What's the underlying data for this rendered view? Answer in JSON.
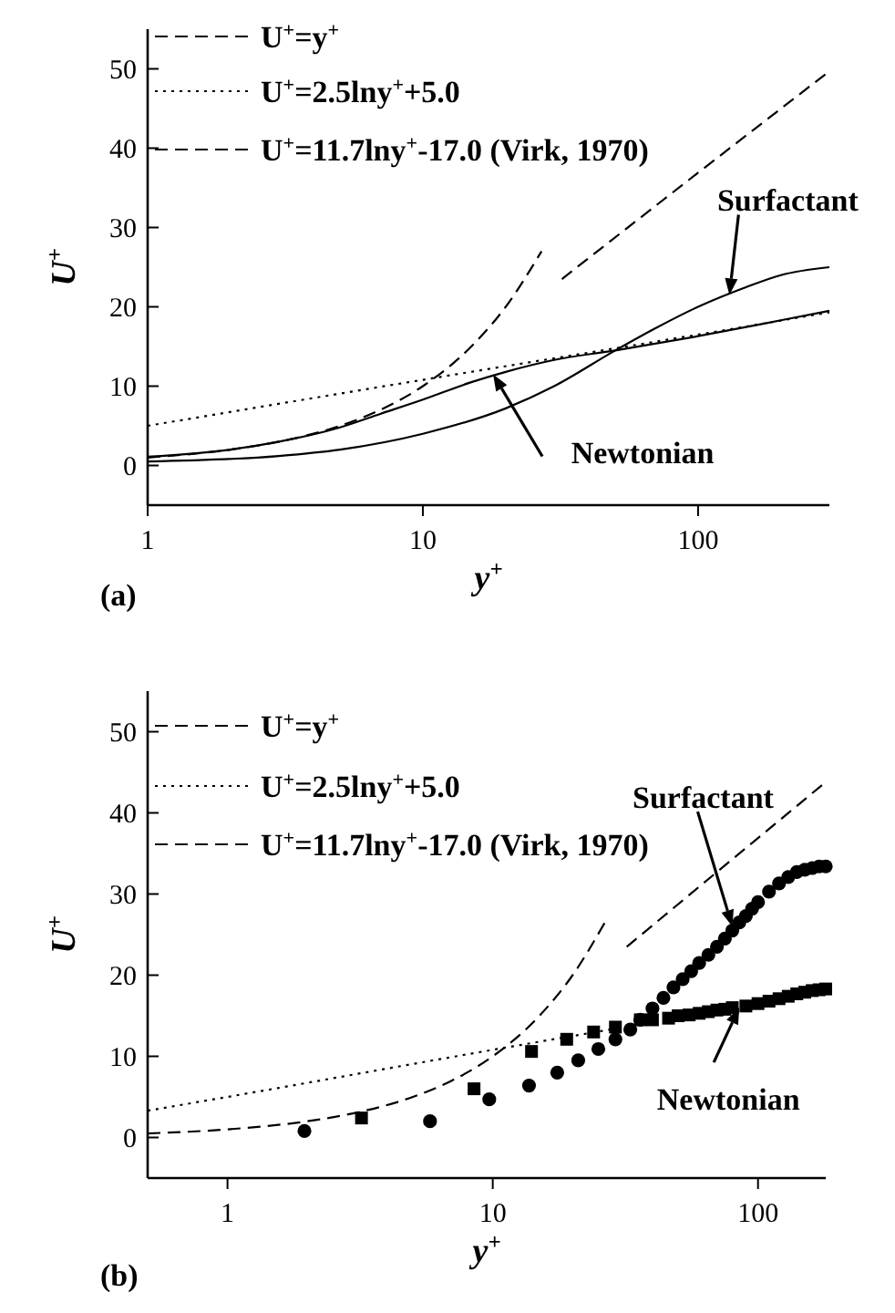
{
  "chart_data": [
    {
      "type": "line",
      "title": "(a)",
      "xlabel": "y$^{+}$",
      "ylabel": "U$^{+}$",
      "log": "x",
      "xlim": [
        1,
        300
      ],
      "xticks": [
        1,
        10,
        100
      ],
      "ylim": [
        -5,
        55
      ],
      "yticks": [
        0,
        10,
        20,
        30,
        40,
        50
      ],
      "grid": false,
      "legend": "top left",
      "series": [
        {
          "name": "U$^{+}$=y$^{+}$",
          "color": "#000000",
          "line_style": "dashed",
          "x": [
            1,
            2,
            3,
            5,
            7,
            10,
            15,
            20,
            27
          ],
          "values": [
            1,
            2,
            3,
            5,
            7,
            10,
            15,
            20,
            27
          ]
        },
        {
          "name": "U$^{+}$=2.5lny$^{+}$+5.0",
          "color": "#000000",
          "line_style": "dotted",
          "x": [
            1,
            10,
            100,
            300
          ],
          "values": [
            5,
            10.8,
            16.5,
            19.3
          ]
        },
        {
          "name": "U$^{+}$=11.7lny$^{+}$-17.0 (Virk, 1970)",
          "color": "#000000",
          "line_style": "dashed",
          "x": [
            32,
            100,
            300
          ],
          "values": [
            23.5,
            36.9,
            49.7
          ]
        },
        {
          "color": "#000000",
          "line_style": "solid",
          "x": [
            1,
            2,
            3,
            5,
            7,
            10,
            15,
            20,
            30,
            50,
            100,
            200,
            300
          ],
          "values": [
            1.1,
            2,
            3,
            4.8,
            6.5,
            8.3,
            10.5,
            11.8,
            13.3,
            14.5,
            16.3,
            18.3,
            19.5
          ]
        },
        {
          "color": "#000000",
          "line_style": "solid",
          "x": [
            1,
            3,
            5,
            10,
            20,
            30,
            50,
            70,
            100,
            150,
            200,
            300
          ],
          "values": [
            0.5,
            1.2,
            2,
            4,
            7.2,
            10,
            14.5,
            17.3,
            20,
            22.5,
            24,
            25
          ]
        }
      ],
      "annotations": [
        {
          "text": "Surfactant",
          "x": 130,
          "y": 21.5
        },
        {
          "text": "Newtonian",
          "x": 18,
          "y": 11.5
        }
      ]
    },
    {
      "type": "scatter",
      "title": "(b)",
      "xlabel": "y$^{+}$",
      "ylabel": "U$^{+}$",
      "log": "x",
      "xlim": [
        0.5,
        180
      ],
      "xticks": [
        1,
        10,
        100
      ],
      "ylim": [
        -5,
        55
      ],
      "yticks": [
        0,
        10,
        20,
        30,
        40,
        50
      ],
      "grid": false,
      "legend": "top left",
      "series": [
        {
          "name": "U$^{+}$=y$^{+}$",
          "type": "line",
          "marker": "none",
          "color": "#000000",
          "line_style": "dashed",
          "x": [
            0.5,
            1,
            2,
            3,
            5,
            7,
            10,
            15,
            20,
            27
          ],
          "values": [
            0.5,
            1,
            2,
            3,
            5,
            7,
            10,
            15,
            20,
            27
          ]
        },
        {
          "name": "U$^{+}$=2.5lny$^{+}$+5.0",
          "type": "line",
          "marker": "none",
          "color": "#000000",
          "line_style": "dotted",
          "x": [
            0.5,
            1,
            10,
            30
          ],
          "values": [
            3.3,
            5,
            10.8,
            13.5
          ]
        },
        {
          "name": "U$^{+}$=11.7lny$^{+}$-17.0 (Virk, 1970)",
          "type": "line",
          "marker": "none",
          "color": "#000000",
          "line_style": "dashed",
          "x": [
            32,
            100,
            180
          ],
          "values": [
            23.5,
            36.9,
            43.8
          ]
        },
        {
          "type": "scatter",
          "marker": "square",
          "color": "#000000",
          "x": [
            3.2,
            8.5,
            14,
            19,
            24,
            29,
            36,
            40,
            46,
            50,
            55,
            60,
            65,
            70,
            75,
            80,
            90,
            100,
            110,
            120,
            130,
            140,
            150,
            160,
            170,
            180
          ],
          "values": [
            2.4,
            6,
            10.6,
            12.1,
            13,
            13.6,
            14.5,
            14.5,
            14.7,
            15,
            15.1,
            15.3,
            15.5,
            15.7,
            15.8,
            16,
            16.2,
            16.5,
            16.8,
            17.1,
            17.4,
            17.7,
            17.9,
            18.1,
            18.2,
            18.3
          ]
        },
        {
          "type": "scatter",
          "marker": "circle",
          "color": "#000000",
          "x": [
            1.95,
            5.8,
            9.7,
            13.7,
            17.5,
            21,
            25,
            29,
            33,
            36,
            40,
            44,
            48,
            52,
            56,
            60,
            65,
            70,
            75,
            80,
            85,
            90,
            95,
            100,
            110,
            120,
            130,
            140,
            150,
            160,
            170,
            180
          ],
          "values": [
            0.8,
            2,
            4.7,
            6.4,
            8,
            9.5,
            10.9,
            12.1,
            13.3,
            14.5,
            15.9,
            17.2,
            18.5,
            19.5,
            20.5,
            21.5,
            22.5,
            23.5,
            24.5,
            25.5,
            26.5,
            27.3,
            28.2,
            29,
            30.3,
            31.3,
            32.1,
            32.7,
            33,
            33.2,
            33.4,
            33.4
          ]
        }
      ],
      "annotations": [
        {
          "text": "Surfactant",
          "x": 80,
          "y": 26
        },
        {
          "text": "Newtonian",
          "x": 85,
          "y": 16
        }
      ]
    }
  ]
}
